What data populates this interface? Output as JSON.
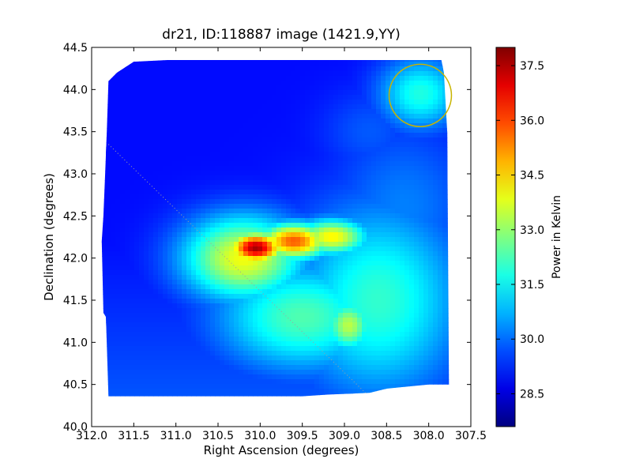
{
  "chart_data": {
    "type": "heatmap",
    "title": "dr21, ID:118887 image (1421.9,YY)",
    "xlabel": "Right Ascension (degrees)",
    "ylabel": "Declination (degrees)",
    "xlim": [
      312.0,
      307.5
    ],
    "ylim": [
      40.0,
      44.5
    ],
    "x_ticks": [
      "312.0",
      "311.5",
      "311.0",
      "310.5",
      "310.0",
      "309.5",
      "309.0",
      "308.5",
      "308.0",
      "307.5"
    ],
    "y_ticks": [
      "40.0",
      "40.5",
      "41.0",
      "41.5",
      "42.0",
      "42.5",
      "43.0",
      "43.5",
      "44.0",
      "44.5"
    ],
    "colorbar": {
      "label": "Power in Kelvin",
      "range": [
        27.6,
        38.0
      ],
      "ticks": [
        "28.5",
        "30.0",
        "31.5",
        "33.0",
        "34.5",
        "36.0",
        "37.5"
      ],
      "colormap": "jet"
    },
    "base_level": 29.0,
    "sources": [
      {
        "ra": 310.05,
        "dec": 42.12,
        "peak": 37.6,
        "sigma_ra": 0.23,
        "sigma_dec": 0.13
      },
      {
        "ra": 309.6,
        "dec": 42.2,
        "peak": 35.8,
        "sigma_ra": 0.3,
        "sigma_dec": 0.15
      },
      {
        "ra": 309.15,
        "dec": 42.25,
        "peak": 34.2,
        "sigma_ra": 0.3,
        "sigma_dec": 0.15
      },
      {
        "ra": 310.2,
        "dec": 42.0,
        "peak": 34.0,
        "sigma_ra": 0.5,
        "sigma_dec": 0.35
      },
      {
        "ra": 308.95,
        "dec": 41.2,
        "peak": 33.4,
        "sigma_ra": 0.2,
        "sigma_dec": 0.22
      },
      {
        "ra": 309.5,
        "dec": 41.3,
        "peak": 32.3,
        "sigma_ra": 0.7,
        "sigma_dec": 0.45
      },
      {
        "ra": 308.6,
        "dec": 41.5,
        "peak": 32.0,
        "sigma_ra": 0.7,
        "sigma_dec": 0.8
      },
      {
        "ra": 308.1,
        "dec": 43.95,
        "peak": 31.8,
        "sigma_ra": 0.35,
        "sigma_dec": 0.3
      },
      {
        "ra": 308.3,
        "dec": 42.6,
        "peak": 30.2,
        "sigma_ra": 0.6,
        "sigma_dec": 0.7
      },
      {
        "ra": 308.7,
        "dec": 43.5,
        "peak": 29.8,
        "sigma_ra": 0.4,
        "sigma_dec": 0.35
      }
    ],
    "coverage_polygon": [
      [
        311.8,
        44.1
      ],
      [
        311.7,
        44.2
      ],
      [
        311.5,
        44.33
      ],
      [
        311.1,
        44.35
      ],
      [
        307.85,
        44.35
      ],
      [
        307.82,
        44.2
      ],
      [
        307.78,
        43.5
      ],
      [
        307.76,
        40.5
      ],
      [
        308.0,
        40.5
      ],
      [
        308.5,
        40.45
      ],
      [
        308.7,
        40.4
      ],
      [
        309.2,
        40.38
      ],
      [
        309.5,
        40.36
      ],
      [
        311.8,
        40.36
      ],
      [
        311.83,
        41.3
      ],
      [
        311.86,
        41.35
      ],
      [
        311.88,
        42.2
      ],
      [
        311.86,
        42.5
      ],
      [
        311.84,
        43.0
      ],
      [
        311.82,
        43.5
      ]
    ],
    "beam_circle": {
      "ra": 308.1,
      "dec": 43.93,
      "radius_deg": 0.37,
      "color": "#c8b400"
    },
    "scan_line": {
      "from": [
        311.8,
        43.35
      ],
      "to": [
        308.75,
        40.4
      ],
      "color": "#a0a0a0"
    }
  }
}
